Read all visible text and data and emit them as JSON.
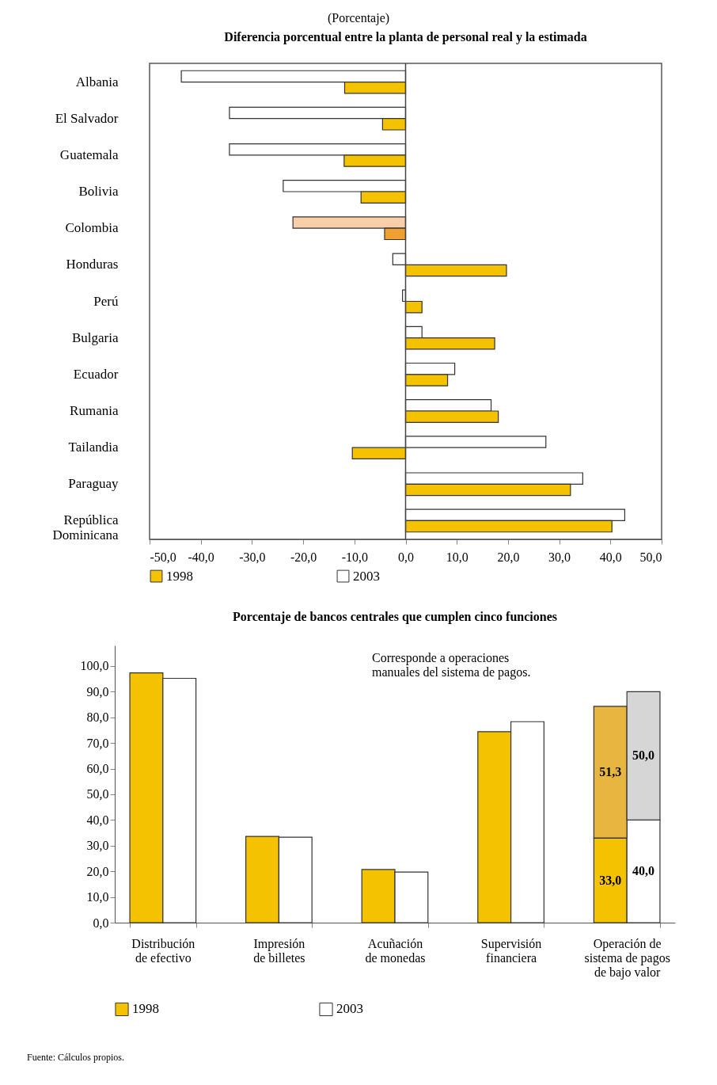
{
  "chart_data": [
    {
      "type": "bar",
      "orientation": "horizontal",
      "subtitle": "(Porcentaje)",
      "title": "Diferencia porcentual entre la planta de personal real y la estimada",
      "categories": [
        "Albania",
        "El Salvador",
        "Guatemala",
        "Bolivia",
        "Colombia",
        "Honduras",
        "Perú",
        "Bulgaria",
        "Ecuador",
        "Rumania",
        "Tailandia",
        "Paraguay",
        "República\nDominicana"
      ],
      "series": [
        {
          "name": "2003",
          "color": "#ffffff",
          "colors": [
            "#ffffff",
            "#ffffff",
            "#ffffff",
            "#ffffff",
            "#f8cfa8",
            "#ffffff",
            "#ffffff",
            "#ffffff",
            "#ffffff",
            "#ffffff",
            "#ffffff",
            "#ffffff",
            "#ffffff"
          ],
          "values": [
            -43.8,
            -34.4,
            -34.4,
            -23.9,
            -22.0,
            -2.5,
            -0.6,
            3.2,
            9.6,
            16.7,
            27.4,
            34.6,
            42.8
          ]
        },
        {
          "name": "1998",
          "color": "#f5c200",
          "colors": [
            "#f5c200",
            "#f5c200",
            "#f5c200",
            "#f5c200",
            "#f0a030",
            "#f5c200",
            "#f5c200",
            "#f5c200",
            "#f5c200",
            "#f5c200",
            "#f5c200",
            "#f5c200",
            "#f5c200"
          ],
          "values": [
            -11.9,
            -4.5,
            -12.0,
            -8.7,
            -4.1,
            19.7,
            3.2,
            17.4,
            8.2,
            18.1,
            -10.4,
            32.2,
            40.3
          ]
        }
      ],
      "xlim": [
        -50,
        50
      ],
      "xticks": [
        {
          "value": -50,
          "label": "-50,0"
        },
        {
          "value": -40,
          "label": "-40,0"
        },
        {
          "value": -30,
          "label": "-30,0"
        },
        {
          "value": -20,
          "label": "-20,0"
        },
        {
          "value": -10,
          "label": "-10,0"
        },
        {
          "value": 0,
          "label": "0,0"
        },
        {
          "value": 10,
          "label": "10,0"
        },
        {
          "value": 20,
          "label": "20,0"
        },
        {
          "value": 30,
          "label": "30,0"
        },
        {
          "value": 40,
          "label": "40,0"
        },
        {
          "value": 50,
          "label": "50,0"
        }
      ],
      "legend": "bottom"
    },
    {
      "type": "bar",
      "title": "Porcentaje de bancos centrales que cumplen cinco funciones",
      "categories": [
        "Distribución\nde efectivo",
        "Impresión\nde billetes",
        "Acuñación\nde monedas",
        "Supervisión\nfinanciera",
        "Operación de\nsistema de pagos\nde bajo valor"
      ],
      "series": [
        {
          "name": "1998",
          "color": "#f5c200",
          "values": [
            97.3,
            33.6,
            20.7,
            74.4,
            33.0
          ],
          "value_labels": [
            null,
            null,
            null,
            null,
            "33,0"
          ]
        },
        {
          "name": "2003",
          "color": "#ffffff",
          "values": [
            95.2,
            33.3,
            19.7,
            78.3,
            40.0
          ],
          "value_labels": [
            null,
            null,
            null,
            null,
            "40,0"
          ]
        },
        {
          "color": "#e8b640",
          "base": [
            null,
            null,
            null,
            null,
            33.0
          ],
          "values": [
            null,
            null,
            null,
            null,
            51.3
          ],
          "value_labels": [
            null,
            null,
            null,
            null,
            "51,3"
          ]
        },
        {
          "color": "#d6d6d6",
          "base": [
            null,
            null,
            null,
            null,
            40.0
          ],
          "values": [
            null,
            null,
            null,
            null,
            50.0
          ],
          "value_labels": [
            null,
            null,
            null,
            null,
            "50,0"
          ]
        }
      ],
      "ylim": [
        0,
        108
      ],
      "yticks": [
        {
          "value": 0,
          "label": "0,0"
        },
        {
          "value": 10,
          "label": "10,0"
        },
        {
          "value": 20,
          "label": "20,0"
        },
        {
          "value": 30,
          "label": "30,0"
        },
        {
          "value": 40,
          "label": "40,0"
        },
        {
          "value": 50,
          "label": "50,0"
        },
        {
          "value": 60,
          "label": "60,0"
        },
        {
          "value": 70,
          "label": "70,0"
        },
        {
          "value": 80,
          "label": "80,0"
        },
        {
          "value": 90,
          "label": "90,0"
        },
        {
          "value": 100,
          "label": "100,0"
        }
      ],
      "annotations": [
        "Corresponde a operaciones\nmanuales del sistema de pagos.",
        "Fuente: Cálculos propios."
      ],
      "legend": "bottom"
    }
  ]
}
